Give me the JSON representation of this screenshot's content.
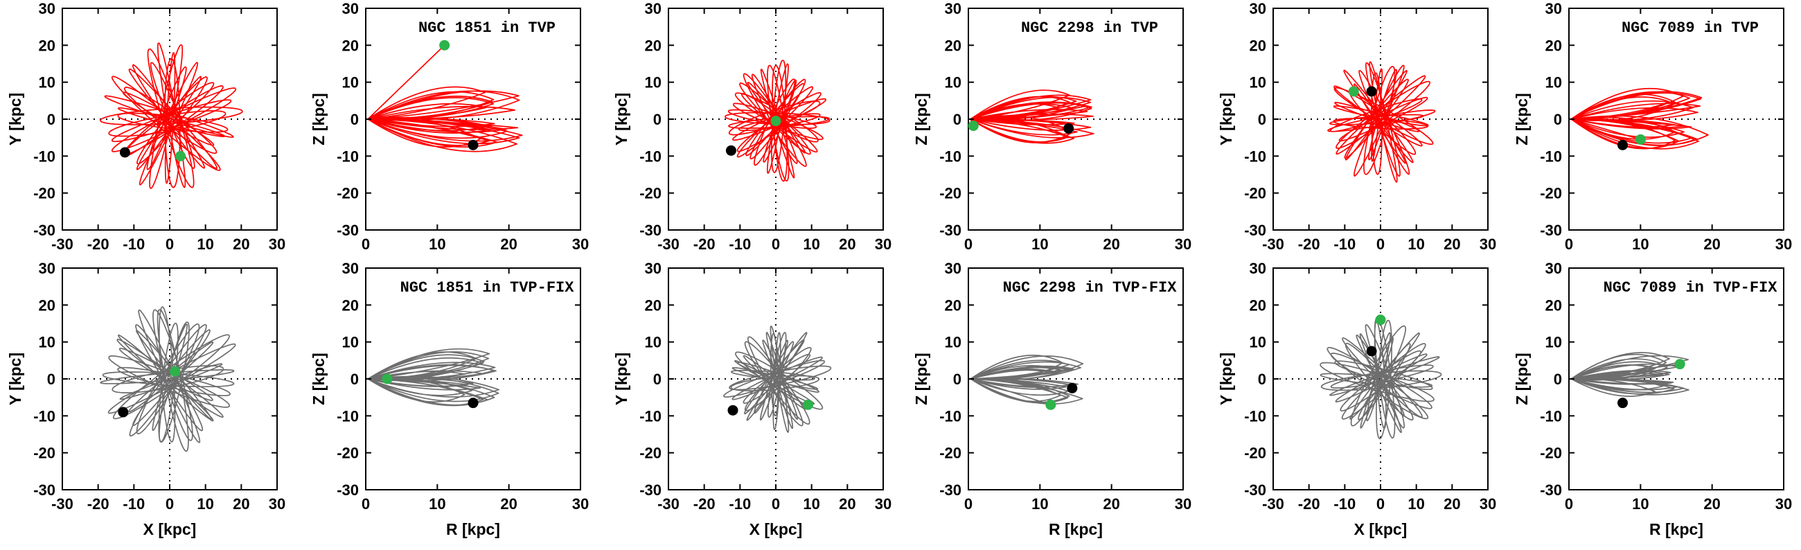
{
  "figure": {
    "description_free": true,
    "colors": {
      "tvp": "#ff0000",
      "fix": "#6e6e6e",
      "initial": "#2db34a",
      "current": "#000000"
    }
  },
  "chart_data": [
    {
      "type": "orbit",
      "clusterKey": "1851",
      "mode": "TVP",
      "projection": "xy",
      "title": "",
      "xlabel": "",
      "ylabel": "Y [kpc]",
      "xlim": [
        -30,
        30
      ],
      "ylim": [
        -30,
        30
      ],
      "xticks": [
        -30,
        -20,
        -10,
        0,
        10,
        20,
        30
      ],
      "yticks": [
        -30,
        -20,
        -10,
        0,
        10,
        20,
        30
      ],
      "color": "#ff0000",
      "rmax": 20,
      "green": [
        3,
        -10
      ],
      "black": [
        -12.5,
        -9
      ]
    },
    {
      "type": "orbit",
      "clusterKey": "1851",
      "mode": "TVP",
      "projection": "rz",
      "title": "NGC 1851 in TVP",
      "xlabel": "",
      "ylabel": "Z [kpc]",
      "xlim": [
        0,
        30
      ],
      "ylim": [
        -30,
        30
      ],
      "xticks": [
        0,
        10,
        20,
        30
      ],
      "yticks": [
        -30,
        -20,
        -10,
        0,
        10,
        20,
        30
      ],
      "color": "#ff0000",
      "rmax": 22,
      "green": [
        11,
        20
      ],
      "black": [
        15,
        -7
      ]
    },
    {
      "type": "orbit",
      "clusterKey": "2298",
      "mode": "TVP",
      "projection": "xy",
      "title": "",
      "xlabel": "",
      "ylabel": "Y [kpc]",
      "xlim": [
        -30,
        30
      ],
      "ylim": [
        -30,
        30
      ],
      "xticks": [
        -30,
        -20,
        -10,
        0,
        10,
        20,
        30
      ],
      "yticks": [
        -30,
        -20,
        -10,
        0,
        10,
        20,
        30
      ],
      "color": "#ff0000",
      "rmax": 16,
      "green": [
        0,
        -0.5
      ],
      "black": [
        -12.5,
        -8.5
      ]
    },
    {
      "type": "orbit",
      "clusterKey": "2298",
      "mode": "TVP",
      "projection": "rz",
      "title": "NGC 2298 in TVP",
      "xlabel": "",
      "ylabel": "Z [kpc]",
      "xlim": [
        0,
        30
      ],
      "ylim": [
        -30,
        30
      ],
      "xticks": [
        0,
        10,
        20,
        30
      ],
      "yticks": [
        -30,
        -20,
        -10,
        0,
        10,
        20,
        30
      ],
      "color": "#ff0000",
      "rmax": 18,
      "green": [
        0.7,
        -1.8
      ],
      "black": [
        14,
        -2.5
      ]
    },
    {
      "type": "orbit",
      "clusterKey": "7089",
      "mode": "TVP",
      "projection": "xy",
      "title": "",
      "xlabel": "",
      "ylabel": "Y [kpc]",
      "xlim": [
        -30,
        30
      ],
      "ylim": [
        -30,
        30
      ],
      "xticks": [
        -30,
        -20,
        -10,
        0,
        10,
        20,
        30
      ],
      "yticks": [
        -30,
        -20,
        -10,
        0,
        10,
        20,
        30
      ],
      "color": "#ff0000",
      "rmax": 17,
      "green": [
        -7.5,
        7.5
      ],
      "black": [
        -2.5,
        7.5
      ]
    },
    {
      "type": "orbit",
      "clusterKey": "7089",
      "mode": "TVP",
      "projection": "rz",
      "title": "NGC 7089 in TVP",
      "xlabel": "",
      "ylabel": "Z [kpc]",
      "xlim": [
        0,
        30
      ],
      "ylim": [
        -30,
        30
      ],
      "xticks": [
        0,
        10,
        20,
        30
      ],
      "yticks": [
        -30,
        -20,
        -10,
        0,
        10,
        20,
        30
      ],
      "color": "#ff0000",
      "rmax": 20,
      "green": [
        10,
        -5.5
      ],
      "black": [
        7.5,
        -7
      ]
    },
    {
      "type": "orbit",
      "clusterKey": "1851",
      "mode": "TVP-FIX",
      "projection": "xy",
      "title": "",
      "xlabel": "X [kpc]",
      "ylabel": "Y [kpc]",
      "xlim": [
        -30,
        30
      ],
      "ylim": [
        -30,
        30
      ],
      "xticks": [
        -30,
        -20,
        -10,
        0,
        10,
        20,
        30
      ],
      "yticks": [
        -30,
        -20,
        -10,
        0,
        10,
        20,
        30
      ],
      "color": "#6e6e6e",
      "rmax": 20,
      "green": [
        1.5,
        2
      ],
      "black": [
        -13,
        -9
      ]
    },
    {
      "type": "orbit",
      "clusterKey": "1851",
      "mode": "TVP-FIX",
      "projection": "rz",
      "title": "NGC 1851 in TVP-FIX",
      "xlabel": "R [kpc]",
      "ylabel": "Z [kpc]",
      "xlim": [
        0,
        30
      ],
      "ylim": [
        -30,
        30
      ],
      "xticks": [
        0,
        10,
        20,
        30
      ],
      "yticks": [
        -30,
        -20,
        -10,
        0,
        10,
        20,
        30
      ],
      "color": "#6e6e6e",
      "rmax": 19,
      "green": [
        3,
        0
      ],
      "black": [
        15,
        -6.5
      ]
    },
    {
      "type": "orbit",
      "clusterKey": "2298",
      "mode": "TVP-FIX",
      "projection": "xy",
      "title": "",
      "xlabel": "X [kpc]",
      "ylabel": "Y [kpc]",
      "xlim": [
        -30,
        30
      ],
      "ylim": [
        -30,
        30
      ],
      "xticks": [
        -30,
        -20,
        -10,
        0,
        10,
        20,
        30
      ],
      "yticks": [
        -30,
        -20,
        -10,
        0,
        10,
        20,
        30
      ],
      "color": "#6e6e6e",
      "rmax": 15,
      "green": [
        9,
        -7
      ],
      "black": [
        -12,
        -8.5
      ]
    },
    {
      "type": "orbit",
      "clusterKey": "2298",
      "mode": "TVP-FIX",
      "projection": "rz",
      "title": "NGC 2298 in TVP-FIX",
      "xlabel": "R [kpc]",
      "ylabel": "Z [kpc]",
      "xlim": [
        0,
        30
      ],
      "ylim": [
        -30,
        30
      ],
      "xticks": [
        0,
        10,
        20,
        30
      ],
      "yticks": [
        -30,
        -20,
        -10,
        0,
        10,
        20,
        30
      ],
      "color": "#6e6e6e",
      "rmax": 16,
      "green": [
        11.5,
        -7
      ],
      "black": [
        14.5,
        -2.5
      ]
    },
    {
      "type": "orbit",
      "clusterKey": "7089",
      "mode": "TVP-FIX",
      "projection": "xy",
      "title": "",
      "xlabel": "X [kpc]",
      "ylabel": "Y [kpc]",
      "xlim": [
        -30,
        30
      ],
      "ylim": [
        -30,
        30
      ],
      "xticks": [
        -30,
        -20,
        -10,
        0,
        10,
        20,
        30
      ],
      "yticks": [
        -30,
        -20,
        -10,
        0,
        10,
        20,
        30
      ],
      "color": "#6e6e6e",
      "rmax": 17,
      "green": [
        0,
        16
      ],
      "black": [
        -2.5,
        7.5
      ]
    },
    {
      "type": "orbit",
      "clusterKey": "7089",
      "mode": "TVP-FIX",
      "projection": "rz",
      "title": "NGC 7089 in TVP-FIX",
      "xlabel": "R [kpc]",
      "ylabel": "Z [kpc]",
      "xlim": [
        0,
        30
      ],
      "ylim": [
        -30,
        30
      ],
      "xticks": [
        0,
        10,
        20,
        30
      ],
      "yticks": [
        -30,
        -20,
        -10,
        0,
        10,
        20,
        30
      ],
      "color": "#6e6e6e",
      "rmax": 17,
      "green": [
        15.5,
        4
      ],
      "black": [
        7.5,
        -6.5
      ]
    }
  ]
}
